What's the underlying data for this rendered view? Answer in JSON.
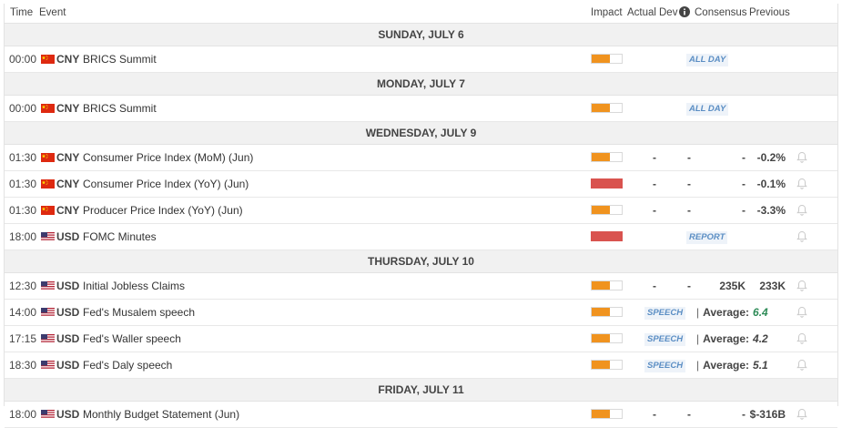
{
  "header": {
    "time": "Time",
    "event": "Event",
    "impact": "Impact",
    "actual": "Actual",
    "dev": "Dev",
    "consensus": "Consensus",
    "previous": "Previous"
  },
  "days": [
    {
      "label": "SUNDAY, JULY 6",
      "events": [
        {
          "time": "00:00",
          "country": "CNY",
          "name": "BRICS Summit",
          "impact": "medium",
          "tag": "ALL DAY"
        }
      ]
    },
    {
      "label": "MONDAY, JULY 7",
      "events": [
        {
          "time": "00:00",
          "country": "CNY",
          "name": "BRICS Summit",
          "impact": "medium",
          "tag": "ALL DAY"
        }
      ]
    },
    {
      "label": "WEDNESDAY, JULY 9",
      "events": [
        {
          "time": "01:30",
          "country": "CNY",
          "name": "Consumer Price Index (MoM) (Jun)",
          "impact": "medium",
          "actual": "-",
          "dev": "-",
          "consensus": "-",
          "previous": "-0.2%"
        },
        {
          "time": "01:30",
          "country": "CNY",
          "name": "Consumer Price Index (YoY) (Jun)",
          "impact": "high",
          "actual": "-",
          "dev": "-",
          "consensus": "-",
          "previous": "-0.1%"
        },
        {
          "time": "01:30",
          "country": "CNY",
          "name": "Producer Price Index (YoY) (Jun)",
          "impact": "medium",
          "actual": "-",
          "dev": "-",
          "consensus": "-",
          "previous": "-3.3%"
        },
        {
          "time": "18:00",
          "country": "USD",
          "name": "FOMC Minutes",
          "impact": "high",
          "tag": "REPORT"
        }
      ]
    },
    {
      "label": "THURSDAY, JULY 10",
      "events": [
        {
          "time": "12:30",
          "country": "USD",
          "name": "Initial Jobless Claims",
          "impact": "medium",
          "actual": "-",
          "dev": "-",
          "consensus": "235K",
          "previous": "233K"
        },
        {
          "time": "14:00",
          "country": "USD",
          "name": "Fed's Musalem speech",
          "impact": "medium",
          "tag": "SPEECH",
          "avg_label": "Average:",
          "avg_value": "6.4",
          "avg_green": true
        },
        {
          "time": "17:15",
          "country": "USD",
          "name": "Fed's Waller speech",
          "impact": "medium",
          "tag": "SPEECH",
          "avg_label": "Average:",
          "avg_value": "4.2"
        },
        {
          "time": "18:30",
          "country": "USD",
          "name": "Fed's Daly speech",
          "impact": "medium",
          "tag": "SPEECH",
          "avg_label": "Average:",
          "avg_value": "5.1"
        }
      ]
    },
    {
      "label": "FRIDAY, JULY 11",
      "events": [
        {
          "time": "18:00",
          "country": "USD",
          "name": "Monthly Budget Statement (Jun)",
          "impact": "medium",
          "actual": "-",
          "dev": "-",
          "consensus": "-",
          "previous": "$-316B"
        }
      ]
    }
  ],
  "colors": {
    "impact_medium": "#f0931f",
    "impact_high": "#d9534f",
    "tag_text": "#5b8ec4",
    "avg_green": "#2e8b57"
  },
  "icons": {
    "dev_info": "info-icon",
    "reminder": "bell-icon",
    "cny_flag": "china-flag-icon",
    "usd_flag": "us-flag-icon"
  }
}
